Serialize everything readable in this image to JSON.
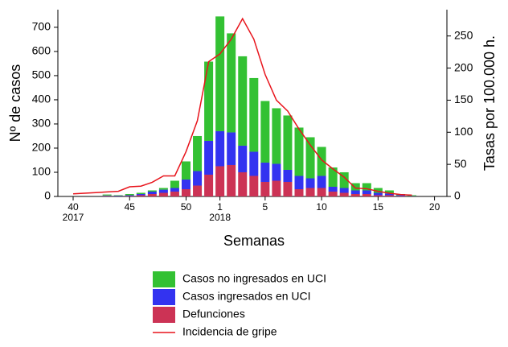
{
  "chart_data": {
    "type": "bar",
    "stacked": true,
    "y_label": "Nº de casos",
    "y2_label": "Tasas por 100.000 h.",
    "x_label": "Semanas",
    "categories": [
      "40",
      null,
      null,
      null,
      null,
      "45",
      null,
      null,
      null,
      null,
      "50",
      null,
      null,
      "1",
      null,
      null,
      null,
      "5",
      null,
      null,
      null,
      null,
      "10",
      null,
      null,
      null,
      null,
      "15",
      null,
      null,
      null,
      null,
      "20"
    ],
    "x_groups": [
      {
        "label": "2017",
        "start": "40"
      },
      {
        "label": "2018",
        "start": "1"
      }
    ],
    "series": [
      {
        "name": "Casos no ingresados en UCI",
        "type": "bar",
        "color": "#33c133",
        "values": [
          0,
          0,
          0,
          4,
          2,
          5,
          5,
          5,
          7,
          30,
          75,
          145,
          328,
          475,
          410,
          370,
          305,
          255,
          230,
          225,
          200,
          170,
          120,
          80,
          65,
          30,
          30,
          20,
          13,
          5,
          3,
          0,
          0
        ]
      },
      {
        "name": "Casos ingresados en UCI",
        "type": "bar",
        "color": "#3333f0",
        "values": [
          0,
          0,
          0,
          2,
          2,
          3,
          5,
          10,
          13,
          15,
          40,
          60,
          140,
          145,
          135,
          110,
          100,
          80,
          70,
          50,
          55,
          40,
          50,
          20,
          20,
          15,
          15,
          10,
          7,
          3,
          1,
          0,
          0
        ]
      },
      {
        "name": "Defunciones",
        "type": "bar",
        "color": "#cc3355",
        "values": [
          0,
          0,
          0,
          2,
          1,
          2,
          5,
          10,
          15,
          20,
          30,
          45,
          90,
          125,
          130,
          100,
          85,
          60,
          65,
          60,
          30,
          35,
          35,
          20,
          15,
          10,
          10,
          5,
          5,
          2,
          1,
          0,
          0
        ]
      },
      {
        "name": "Incidencia de gripe",
        "type": "line",
        "axis": "y2",
        "color": "#e8141c",
        "values": [
          4,
          5,
          6,
          7,
          8,
          15,
          16,
          22,
          32,
          32,
          70,
          118,
          210,
          222,
          245,
          277,
          245,
          190,
          150,
          133,
          105,
          80,
          57,
          43,
          30,
          13,
          12,
          8,
          5,
          3,
          2,
          null,
          null
        ]
      }
    ],
    "ylim": [
      0,
      773
    ],
    "yticks": [
      0,
      100,
      200,
      300,
      400,
      500,
      600,
      700
    ],
    "y2lim": [
      0,
      291
    ],
    "y2ticks": [
      0,
      50,
      100,
      150,
      200,
      250
    ]
  }
}
